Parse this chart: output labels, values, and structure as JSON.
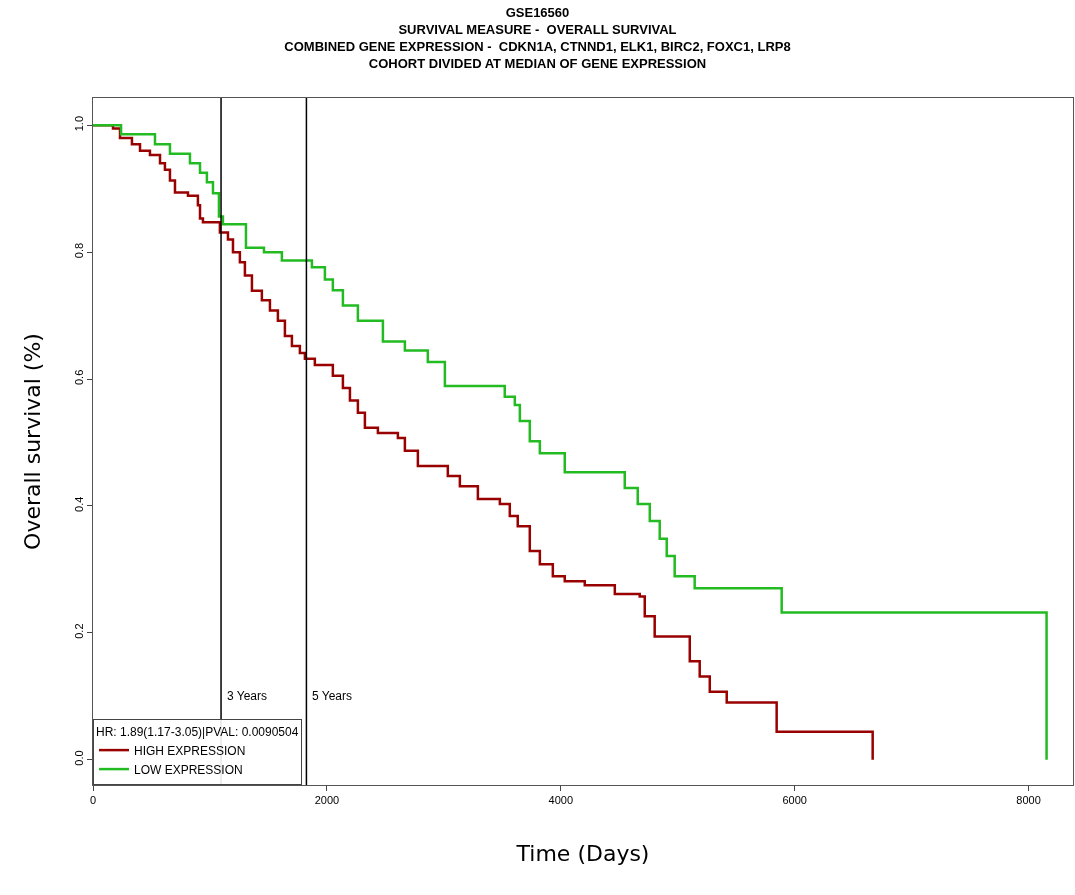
{
  "chart_data": {
    "type": "step",
    "title": "GSE16560",
    "subtitle": "SURVIVAL MEASURE -  OVERALL SURVIVAL\nCOMBINED GENE EXPRESSION -  CDKN1A, CTNND1, ELK1, BIRC2, FOXC1, LRP8\nCOHORT DIVIDED AT MEDIAN OF GENE EXPRESSION",
    "xlabel": "Time (Days)",
    "ylabel": "Overall survival (%)",
    "legend_title": "HR: 1.89(1.17-3.05)|PVAL: 0.0090504",
    "legend": "bottom left",
    "xlim": [
      0,
      8380
    ],
    "xticks": [
      0,
      2000,
      4000,
      6000,
      8000
    ],
    "ylim": [
      -0.04,
      1.043
    ],
    "yticks": [
      {
        "value": 0,
        "label": "0.0"
      },
      {
        "value": 0.2,
        "label": "0.2"
      },
      {
        "value": 0.4,
        "label": "0.4"
      },
      {
        "value": 0.6,
        "label": "0.6"
      },
      {
        "value": 0.8,
        "label": "0.8"
      },
      {
        "value": 1,
        "label": "1.0"
      }
    ],
    "ref_lines": [
      {
        "axis": "x",
        "value": 1095,
        "label": "3 Years",
        "color": "#000000"
      },
      {
        "axis": "x",
        "value": 1825,
        "label": "5 Years",
        "color": "#000000"
      }
    ],
    "series": [
      {
        "name": "HIGH EXPRESSION",
        "color": "#990000",
        "x": [
          0,
          171,
          231,
          333,
          402,
          487,
          573,
          615,
          658,
          701,
          812,
          897,
          915,
          940,
          1085,
          1154,
          1197,
          1256,
          1299,
          1359,
          1444,
          1513,
          1581,
          1641,
          1701,
          1769,
          1812,
          1897,
          2051,
          2137,
          2197,
          2265,
          2325,
          2436,
          2607,
          2667,
          2778,
          3034,
          3137,
          3291,
          3479,
          3564,
          3632,
          3735,
          3821,
          3932,
          4034,
          4205,
          4462,
          4675,
          4718,
          4803,
          5103,
          5188,
          5274,
          5419,
          5846,
          6667
        ],
        "values": [
          1.0,
          0.995,
          0.98,
          0.97,
          0.96,
          0.953,
          0.94,
          0.93,
          0.913,
          0.894,
          0.889,
          0.874,
          0.853,
          0.847,
          0.831,
          0.82,
          0.8,
          0.784,
          0.763,
          0.739,
          0.724,
          0.708,
          0.692,
          0.668,
          0.652,
          0.641,
          0.632,
          0.622,
          0.605,
          0.586,
          0.566,
          0.547,
          0.523,
          0.515,
          0.507,
          0.487,
          0.463,
          0.447,
          0.431,
          0.411,
          0.403,
          0.384,
          0.368,
          0.329,
          0.308,
          0.289,
          0.281,
          0.275,
          0.261,
          0.257,
          0.226,
          0.194,
          0.155,
          0.131,
          0.107,
          0.09,
          0.044,
          0.0
        ]
      },
      {
        "name": "LOW EXPRESSION",
        "color": "#22bb22",
        "x": [
          0,
          240,
          530,
          658,
          829,
          915,
          974,
          1026,
          1077,
          1111,
          1308,
          1462,
          1615,
          1872,
          1983,
          2051,
          2137,
          2265,
          2479,
          2667,
          2863,
          3009,
          3521,
          3607,
          3650,
          3735,
          3821,
          4034,
          4547,
          4658,
          4761,
          4846,
          4906,
          4974,
          5145,
          5889,
          8154
        ],
        "values": [
          1.0,
          0.986,
          0.97,
          0.955,
          0.94,
          0.925,
          0.91,
          0.893,
          0.856,
          0.844,
          0.807,
          0.8,
          0.787,
          0.776,
          0.757,
          0.74,
          0.716,
          0.692,
          0.659,
          0.645,
          0.627,
          0.589,
          0.572,
          0.559,
          0.534,
          0.502,
          0.483,
          0.453,
          0.428,
          0.403,
          0.376,
          0.348,
          0.321,
          0.289,
          0.27,
          0.232,
          0.0
        ]
      }
    ]
  }
}
